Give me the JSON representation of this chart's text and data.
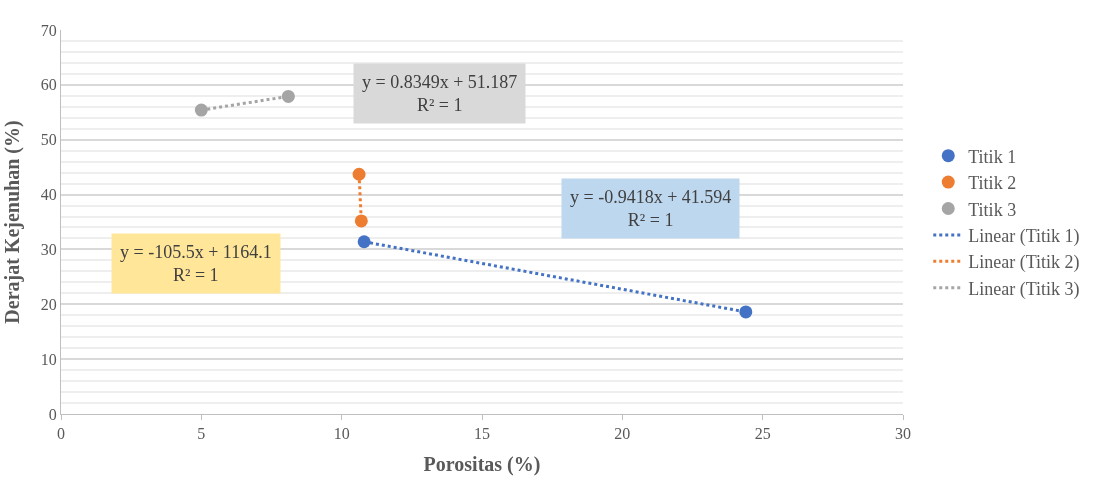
{
  "chart_data": {
    "type": "scatter",
    "xlabel": "Porositas (%)",
    "ylabel": "Derajat Kejenuhan (%)",
    "series": [
      {
        "name": "Titik 1",
        "color": "#4472c4",
        "x": [
          10.8,
          24.4
        ],
        "values": [
          31.4,
          18.6
        ]
      },
      {
        "name": "Titik 2",
        "color": "#ed7d31",
        "x": [
          10.62,
          10.7
        ],
        "values": [
          43.7,
          35.2
        ]
      },
      {
        "name": "Titik 3",
        "color": "#a5a5a5",
        "x": [
          5,
          8.1
        ],
        "values": [
          55.4,
          57.9
        ]
      },
      {
        "name": "Linear (Titik 1)",
        "type": "line",
        "line_style": "dotted",
        "marker": "none",
        "color": "#4472c4",
        "x": [
          10.8,
          24.4
        ],
        "values": [
          31.4,
          18.6
        ]
      },
      {
        "name": "Linear (Titik 2)",
        "type": "line",
        "line_style": "dotted",
        "marker": "none",
        "color": "#ed7d31",
        "x": [
          10.62,
          10.7
        ],
        "values": [
          43.7,
          35.2
        ]
      },
      {
        "name": "Linear (Titik 3)",
        "type": "line",
        "line_style": "dotted",
        "marker": "none",
        "color": "#a5a5a5",
        "x": [
          5,
          8.1
        ],
        "values": [
          55.4,
          57.9
        ]
      }
    ],
    "marker": "circle",
    "xlim": [
      0,
      30
    ],
    "xticks": [
      0,
      5,
      10,
      15,
      20,
      25,
      30
    ],
    "ylim": [
      0,
      70
    ],
    "yticks": [
      0,
      10,
      20,
      30,
      40,
      50,
      60,
      70
    ],
    "grid": "y",
    "legend": "right",
    "annotations": [
      "y = 0.8349x + 51.187\nR² = 1",
      "y = -0.9418x + 41.594\nR² = 1",
      "y = -105.5x + 1164.1\nR² = 1"
    ]
  }
}
